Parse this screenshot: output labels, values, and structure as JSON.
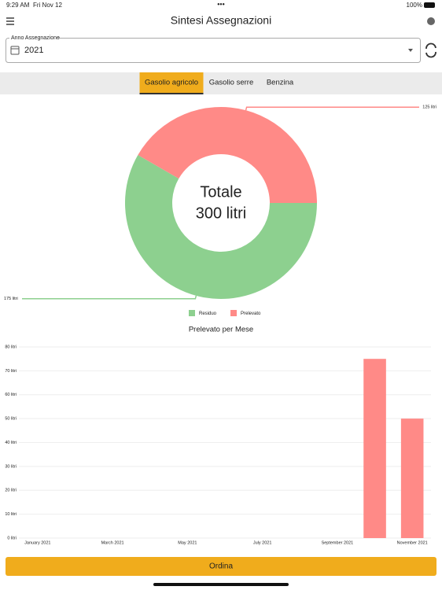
{
  "status_bar": {
    "time": "9:29 AM",
    "date": "Fri Nov 12",
    "battery": "100%"
  },
  "header": {
    "title": "Sintesi Assegnazioni"
  },
  "year_select": {
    "label": "Anno Assegnazione",
    "value": "2021"
  },
  "tabs": [
    "Gasolio agricolo",
    "Gasolio serre",
    "Benzina"
  ],
  "active_tab": 0,
  "chart_data": [
    {
      "type": "donut",
      "center_text": [
        "Totale",
        "300 litri"
      ],
      "categories": [
        "Residuo",
        "Prelevato"
      ],
      "values": [
        175,
        125
      ],
      "value_labels": [
        "175 litri",
        "125 litri"
      ],
      "colors": [
        "#8dd08f",
        "#ff8a87"
      ],
      "legend": "bottom"
    },
    {
      "type": "bar",
      "title": "Prelevato per Mese",
      "categories": [
        "January 2021",
        null,
        "March 2021",
        null,
        "May 2021",
        null,
        "July 2021",
        null,
        "September 2021",
        null,
        "November 2021"
      ],
      "values": [
        0,
        0,
        0,
        0,
        0,
        0,
        0,
        0,
        0,
        75,
        50
      ],
      "color": "#ff8a87",
      "ylim": [
        0,
        80
      ],
      "yticks": [
        {
          "value": 0,
          "label": "0 litri"
        },
        {
          "value": 10,
          "label": "10 litri"
        },
        {
          "value": 20,
          "label": "20 litri"
        },
        {
          "value": 30,
          "label": "30 litri"
        },
        {
          "value": 40,
          "label": "40 litri"
        },
        {
          "value": 50,
          "label": "50 litri"
        },
        {
          "value": 60,
          "label": "60 litri"
        },
        {
          "value": 70,
          "label": "70 litri"
        },
        {
          "value": 80,
          "label": "80 litri"
        }
      ],
      "grid": true
    }
  ],
  "button": {
    "label": "Ordina"
  }
}
